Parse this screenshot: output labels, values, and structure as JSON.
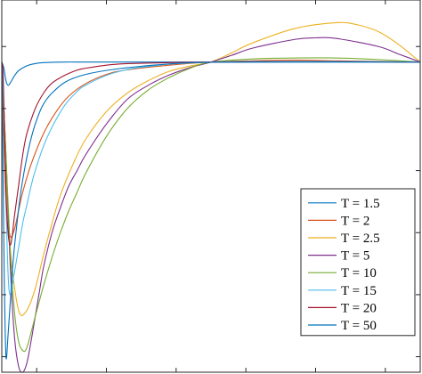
{
  "chart_data": {
    "type": "line",
    "title": "",
    "xlabel": "",
    "ylabel": "",
    "xlim": [
      0,
      1
    ],
    "ylim": [
      -1,
      0.2
    ],
    "x_tick_count": 6,
    "y_tick_count": 6,
    "tick_labels_visible": false,
    "grid": false,
    "legend": {
      "position": "bottom-right"
    },
    "series": [
      {
        "name": "T = 1.5",
        "color": "#0072BD",
        "x": [
          0,
          0.005,
          0.01,
          0.015,
          0.02,
          0.03,
          0.04,
          0.06,
          0.08,
          0.1,
          0.15,
          0.2,
          0.3,
          0.5,
          0.7,
          1.0
        ],
        "y": [
          0.0,
          -0.02,
          -0.06,
          -0.075,
          -0.068,
          -0.045,
          -0.028,
          -0.012,
          -0.005,
          -0.002,
          0.0,
          0.0,
          0.0,
          0.0,
          0.0,
          0.0
        ]
      },
      {
        "name": "T = 2",
        "color": "#D95319",
        "x": [
          0,
          0.01,
          0.02,
          0.03,
          0.04,
          0.05,
          0.07,
          0.1,
          0.13,
          0.16,
          0.2,
          0.25,
          0.3,
          0.4,
          0.5,
          0.6,
          0.7,
          0.8,
          0.9,
          1.0
        ],
        "y": [
          0.0,
          -0.45,
          -0.56,
          -0.54,
          -0.48,
          -0.42,
          -0.33,
          -0.23,
          -0.16,
          -0.11,
          -0.07,
          -0.04,
          -0.025,
          -0.01,
          0.0,
          0.004,
          0.006,
          0.004,
          0.002,
          0.0
        ]
      },
      {
        "name": "T = 2.5",
        "color": "#EDB120",
        "x": [
          0,
          0.01,
          0.02,
          0.04,
          0.06,
          0.08,
          0.1,
          0.12,
          0.14,
          0.17,
          0.2,
          0.25,
          0.3,
          0.35,
          0.4,
          0.45,
          0.5,
          0.55,
          0.6,
          0.7,
          0.8,
          0.85,
          0.9,
          0.95,
          1.0
        ],
        "y": [
          0.0,
          -0.35,
          -0.6,
          -0.8,
          -0.8,
          -0.73,
          -0.62,
          -0.52,
          -0.43,
          -0.33,
          -0.25,
          -0.16,
          -0.1,
          -0.06,
          -0.03,
          -0.013,
          0.0,
          0.03,
          0.062,
          0.108,
          0.127,
          0.12,
          0.098,
          0.055,
          0.0
        ]
      },
      {
        "name": "T = 5",
        "color": "#7E2F8E",
        "x": [
          0,
          0.01,
          0.02,
          0.03,
          0.04,
          0.05,
          0.06,
          0.07,
          0.08,
          0.09,
          0.1,
          0.12,
          0.14,
          0.16,
          0.18,
          0.2,
          0.25,
          0.3,
          0.35,
          0.4,
          0.45,
          0.5,
          0.55,
          0.6,
          0.7,
          0.75,
          0.8,
          0.9,
          0.95,
          1.0
        ],
        "y": [
          0.0,
          -0.3,
          -0.65,
          -0.88,
          -0.98,
          -1.0,
          -0.97,
          -0.9,
          -0.82,
          -0.74,
          -0.66,
          -0.55,
          -0.47,
          -0.4,
          -0.35,
          -0.3,
          -0.2,
          -0.12,
          -0.075,
          -0.042,
          -0.018,
          0.0,
          0.022,
          0.045,
          0.073,
          0.078,
          0.076,
          0.05,
          0.025,
          0.0
        ]
      },
      {
        "name": "T = 10",
        "color": "#77AC30",
        "x": [
          0,
          0.01,
          0.02,
          0.03,
          0.04,
          0.05,
          0.06,
          0.08,
          0.1,
          0.12,
          0.14,
          0.16,
          0.18,
          0.2,
          0.25,
          0.3,
          0.35,
          0.4,
          0.45,
          0.5,
          0.6,
          0.7,
          0.8,
          0.9,
          1.0
        ],
        "y": [
          0.0,
          -0.3,
          -0.6,
          -0.8,
          -0.9,
          -0.93,
          -0.92,
          -0.82,
          -0.72,
          -0.63,
          -0.55,
          -0.48,
          -0.42,
          -0.36,
          -0.24,
          -0.15,
          -0.09,
          -0.05,
          -0.02,
          0.0,
          0.01,
          0.013,
          0.013,
          0.008,
          0.0
        ]
      },
      {
        "name": "T = 15",
        "color": "#4DBEEE",
        "x": [
          0,
          0.005,
          0.01,
          0.015,
          0.02,
          0.03,
          0.04,
          0.05,
          0.06,
          0.07,
          0.08,
          0.1,
          0.12,
          0.15,
          0.18,
          0.2,
          0.25,
          0.3,
          0.35,
          0.4,
          0.45,
          0.5,
          0.6,
          0.8,
          1.0
        ],
        "y": [
          0.0,
          -0.15,
          -0.45,
          -0.68,
          -0.75,
          -0.68,
          -0.6,
          -0.52,
          -0.46,
          -0.4,
          -0.35,
          -0.27,
          -0.21,
          -0.14,
          -0.095,
          -0.075,
          -0.043,
          -0.024,
          -0.014,
          -0.007,
          -0.003,
          0.0,
          0.002,
          0.002,
          0.0
        ]
      },
      {
        "name": "T = 20",
        "color": "#A2142F",
        "x": [
          0,
          0.003,
          0.006,
          0.01,
          0.015,
          0.02,
          0.025,
          0.03,
          0.04,
          0.05,
          0.06,
          0.08,
          0.1,
          0.12,
          0.15,
          0.18,
          0.2,
          0.25,
          0.3,
          0.4,
          0.5,
          0.6,
          0.8,
          1.0
        ],
        "y": [
          0.0,
          -0.03,
          -0.2,
          -0.42,
          -0.55,
          -0.59,
          -0.56,
          -0.5,
          -0.4,
          -0.3,
          -0.23,
          -0.15,
          -0.1,
          -0.068,
          -0.043,
          -0.026,
          -0.02,
          -0.01,
          -0.005,
          -0.002,
          0.0,
          0.001,
          0.001,
          0.0
        ]
      },
      {
        "name": "T = 50",
        "color": "#0072BD",
        "x": [
          0,
          0.003,
          0.006,
          0.01,
          0.015,
          0.02,
          0.03,
          0.05,
          0.08,
          0.12,
          0.2,
          0.4,
          0.6,
          1.0
        ],
        "y": [
          0.0,
          -0.35,
          -0.7,
          -0.95,
          -0.88,
          -0.78,
          -0.6,
          -0.38,
          -0.2,
          -0.1,
          -0.04,
          -0.006,
          0.0,
          0.0
        ]
      }
    ]
  }
}
